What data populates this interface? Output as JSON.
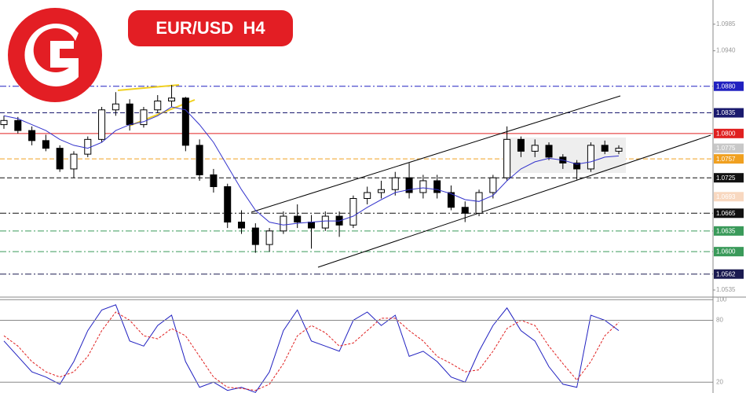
{
  "chart_data": {
    "type": "candlestick",
    "title": "EUR/USD  H4",
    "candles": {
      "open": [
        1.0815,
        1.0822,
        1.0805,
        1.0788,
        1.0775,
        1.074,
        1.0765,
        1.079,
        1.084,
        1.085,
        1.0815,
        1.084,
        1.0855,
        1.086,
        1.078,
        1.073,
        1.071,
        1.065,
        1.064,
        1.0612,
        1.0635,
        1.066,
        1.065,
        1.064,
        1.066,
        1.0645,
        1.069,
        1.07,
        1.0705,
        1.0725,
        1.07,
        1.072,
        1.07,
        1.0675,
        1.0665,
        1.07,
        1.0725,
        1.079,
        1.077,
        1.078,
        1.076,
        1.075,
        1.074,
        1.078,
        1.077
      ],
      "high": [
        1.083,
        1.0828,
        1.0812,
        1.0798,
        1.078,
        1.077,
        1.0795,
        1.0845,
        1.087,
        1.0858,
        1.0845,
        1.0865,
        1.0882,
        1.0862,
        1.079,
        1.074,
        1.0715,
        1.067,
        1.0648,
        1.064,
        1.0668,
        1.068,
        1.0662,
        1.0668,
        1.0668,
        1.0695,
        1.071,
        1.072,
        1.0735,
        1.075,
        1.073,
        1.073,
        1.0712,
        1.0685,
        1.0705,
        1.073,
        1.0812,
        1.0795,
        1.079,
        1.0785,
        1.0765,
        1.0755,
        1.0785,
        1.0788,
        1.078
      ],
      "low": [
        1.0808,
        1.08,
        1.078,
        1.077,
        1.0735,
        1.0725,
        1.076,
        1.0785,
        1.083,
        1.0805,
        1.081,
        1.0835,
        1.0845,
        1.077,
        1.072,
        1.07,
        1.064,
        1.063,
        1.0598,
        1.06,
        1.063,
        1.064,
        1.0605,
        1.0635,
        1.0625,
        1.064,
        1.068,
        1.069,
        1.0695,
        1.069,
        1.069,
        1.069,
        1.067,
        1.065,
        1.066,
        1.069,
        1.072,
        1.076,
        1.076,
        1.0755,
        1.074,
        1.0722,
        1.0735,
        1.0765,
        1.0765
      ],
      "close": [
        1.0822,
        1.0805,
        1.0788,
        1.0775,
        1.074,
        1.0765,
        1.079,
        1.084,
        1.085,
        1.0815,
        1.084,
        1.0855,
        1.086,
        1.078,
        1.073,
        1.071,
        1.065,
        1.064,
        1.0612,
        1.0635,
        1.066,
        1.065,
        1.064,
        1.066,
        1.0645,
        1.069,
        1.07,
        1.0705,
        1.0725,
        1.07,
        1.072,
        1.07,
        1.0675,
        1.0665,
        1.07,
        1.0725,
        1.079,
        1.077,
        1.078,
        1.076,
        1.075,
        1.074,
        1.078,
        1.077,
        1.0775
      ]
    },
    "ma": {
      "color": "#3333cc",
      "values": [
        1.083,
        1.0825,
        1.0815,
        1.0805,
        1.079,
        1.078,
        1.0775,
        1.0785,
        1.0805,
        1.0815,
        1.082,
        1.083,
        1.0845,
        1.084,
        1.0815,
        1.0785,
        1.0745,
        1.0705,
        1.067,
        1.065,
        1.0645,
        1.0648,
        1.065,
        1.0652,
        1.0652,
        1.066,
        1.0675,
        1.0688,
        1.07,
        1.0705,
        1.0708,
        1.0705,
        1.0698,
        1.0688,
        1.0685,
        1.0695,
        1.072,
        1.074,
        1.0752,
        1.0758,
        1.0755,
        1.0748,
        1.0752,
        1.076,
        1.0762
      ]
    },
    "ylim": [
      1.0523,
      1.1026
    ],
    "yticks": [
      1.0985,
      {
        "value": 1.094,
        "label": "1.0940"
      },
      1.0535
    ],
    "levels": [
      {
        "value": 1.088,
        "label": "1.0880",
        "color": "#2020c0",
        "style": "dashdot"
      },
      {
        "value": 1.0835,
        "color": "#1a1a6e",
        "style": "dashed"
      },
      {
        "value": 1.08,
        "label": "1.0800",
        "color": "#e02020",
        "style": "solid"
      },
      {
        "value": 1.0775,
        "color": "#c8c8c8",
        "style": "none"
      },
      {
        "value": 1.0757,
        "color": "#f0a020",
        "style": "dashed"
      },
      {
        "value": 1.0725,
        "color": "#111111",
        "style": "dashed"
      },
      {
        "value": 1.0693,
        "color": "#f8d8c0",
        "style": "none"
      },
      {
        "value": 1.0665,
        "color": "#111111",
        "style": "dashdot"
      },
      {
        "value": 1.0635,
        "color": "#3a9a5a",
        "style": "dashdot"
      },
      {
        "value": 1.06,
        "label": "1.0600",
        "color": "#3a9a5a",
        "style": "dashdot"
      },
      {
        "value": 1.0562,
        "color": "#1a1a50",
        "style": "dashdot"
      }
    ],
    "oscillator": {
      "ylim": [
        9.5,
        102.5
      ],
      "yticks": [
        100,
        80,
        20
      ],
      "series": [
        {
          "color": "#2020c0",
          "values": [
            60,
            45,
            30,
            25,
            18,
            40,
            70,
            90,
            95,
            60,
            55,
            75,
            85,
            40,
            15,
            20,
            12,
            15,
            10,
            30,
            70,
            90,
            60,
            55,
            50,
            80,
            88,
            75,
            85,
            45,
            50,
            40,
            25,
            20,
            50,
            75,
            92,
            70,
            60,
            35,
            18,
            15,
            85,
            80,
            70
          ]
        },
        {
          "color": "#e02020",
          "values": [
            65,
            55,
            40,
            30,
            25,
            30,
            45,
            70,
            88,
            80,
            65,
            62,
            72,
            65,
            45,
            25,
            15,
            14,
            12,
            18,
            38,
            65,
            75,
            68,
            55,
            58,
            70,
            82,
            82,
            70,
            60,
            45,
            38,
            30,
            32,
            50,
            72,
            80,
            75,
            55,
            38,
            22,
            40,
            65,
            78
          ]
        }
      ]
    }
  }
}
